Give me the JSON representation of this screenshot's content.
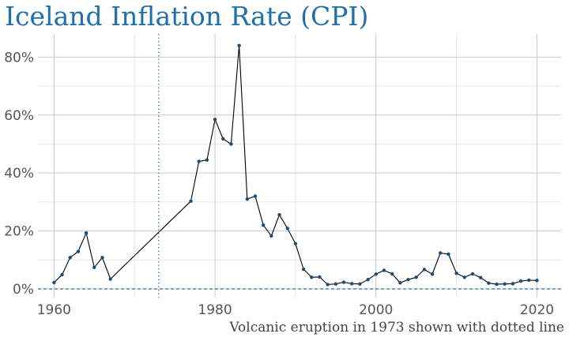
{
  "chart_data": {
    "type": "line",
    "title": "Iceland Inflation Rate (CPI)",
    "caption": "Volcanic eruption in 1973 shown with dotted line",
    "xlabel": "",
    "ylabel": "",
    "xlim": [
      1958,
      2023
    ],
    "ylim": [
      -3,
      88
    ],
    "x_ticks": [
      1960,
      1980,
      2000,
      2020
    ],
    "y_ticks": [
      0,
      20,
      40,
      60,
      80
    ],
    "y_tick_labels": [
      "0%",
      "20%",
      "40%",
      "60%",
      "80%"
    ],
    "reference_lines": [
      {
        "axis": "x",
        "value": 1973,
        "style": "dotted"
      },
      {
        "axis": "y",
        "value": 0,
        "style": "dashed"
      }
    ],
    "grid": true,
    "colors": {
      "title": "#1f6fa8",
      "line": "#000000",
      "points": "#1a4d78",
      "reference": "#2e6f96"
    },
    "series": [
      {
        "x": [
          1960,
          1961,
          1962,
          1963,
          1964,
          1965,
          1966,
          1967,
          1977,
          1978,
          1979,
          1980,
          1981,
          1982,
          1983,
          1984,
          1985,
          1986,
          1987,
          1988,
          1989,
          1990,
          1991,
          1992,
          1993,
          1994,
          1995,
          1996,
          1997,
          1998,
          1999,
          2000,
          2001,
          2002,
          2003,
          2004,
          2005,
          2006,
          2007,
          2008,
          2009,
          2010,
          2011,
          2012,
          2013,
          2014,
          2015,
          2016,
          2017,
          2018,
          2019,
          2020
        ],
        "values": [
          2.2,
          4.9,
          10.8,
          12.9,
          19.3,
          7.4,
          10.8,
          3.4,
          30.3,
          44.0,
          44.5,
          58.5,
          51.8,
          50.0,
          84.0,
          31.0,
          32.0,
          22.0,
          18.3,
          25.6,
          20.9,
          15.6,
          6.8,
          4.0,
          4.1,
          1.5,
          1.7,
          2.3,
          1.8,
          1.7,
          3.2,
          5.1,
          6.4,
          5.2,
          2.1,
          3.2,
          4.0,
          6.7,
          5.1,
          12.4,
          12.0,
          5.4,
          4.0,
          5.2,
          3.9,
          2.0,
          1.6,
          1.7,
          1.8,
          2.7,
          3.0,
          2.9
        ]
      }
    ]
  }
}
